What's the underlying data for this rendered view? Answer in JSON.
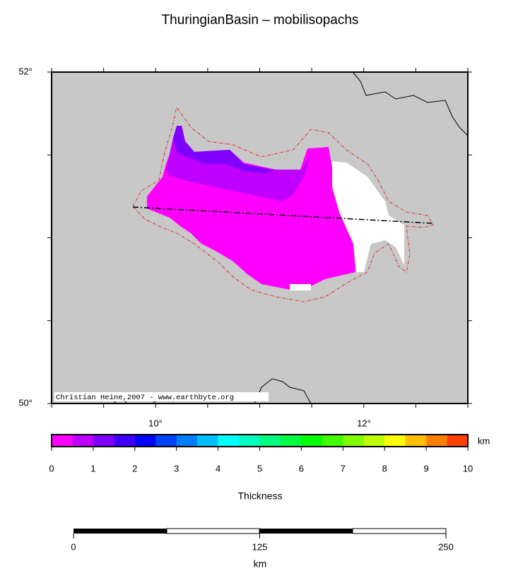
{
  "title": "ThuringianBasin – mobilisopachs",
  "map": {
    "lat_labels": [
      "52°",
      "50°"
    ],
    "lon_labels": [
      "10°",
      "12°"
    ],
    "credit": "Christian Heine,2007 - www.earthbyte.org"
  },
  "colorbar": {
    "colors": [
      "#ff00ff",
      "#bf00ff",
      "#8000ff",
      "#4000ff",
      "#0000ff",
      "#0040ff",
      "#0080ff",
      "#00bfff",
      "#00ffff",
      "#00ffbf",
      "#00ff80",
      "#00ff40",
      "#00ff00",
      "#40ff00",
      "#80ff00",
      "#bfff00",
      "#ffff00",
      "#ffbf00",
      "#ff8000",
      "#ff4000"
    ],
    "ticks": [
      0,
      1,
      2,
      3,
      4,
      5,
      6,
      7,
      8,
      9,
      10
    ],
    "unit": "km",
    "label": "Thickness"
  },
  "scalebar": {
    "ticks": [
      0,
      125,
      250
    ],
    "unit": "km"
  }
}
